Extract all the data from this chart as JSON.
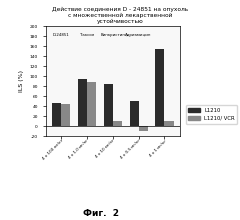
{
  "title": "Действие соединения D - 24851 на опухоль\nс множественной лекарственной\nустойчивостью",
  "ylabel": "ILS (%)",
  "group_annotations": [
    "D-24851",
    "Таксол",
    "Винкристин",
    "Адриамицин"
  ],
  "L1210": [
    46,
    95,
    85,
    50,
    155
  ],
  "L1210_VCR": [
    44,
    88,
    10,
    -10,
    10
  ],
  "ylim": [
    -20,
    200
  ],
  "yticks": [
    -20,
    0,
    20,
    40,
    60,
    80,
    100,
    120,
    140,
    160,
    180,
    200
  ],
  "color_L1210": "#2b2b2b",
  "color_L1210_VCR": "#888888",
  "bar_width": 0.35,
  "legend_labels": [
    "L1210",
    "L1210/ VCR"
  ],
  "x_labels": [
    "4 x 100 мг/кг",
    "4 x 1.0 мг/кг",
    "4 x 10 мг/кг",
    "4 x 0.5 мг/кг",
    "4 x 1 мг/кг"
  ],
  "fig_label": "Фиг.  2"
}
